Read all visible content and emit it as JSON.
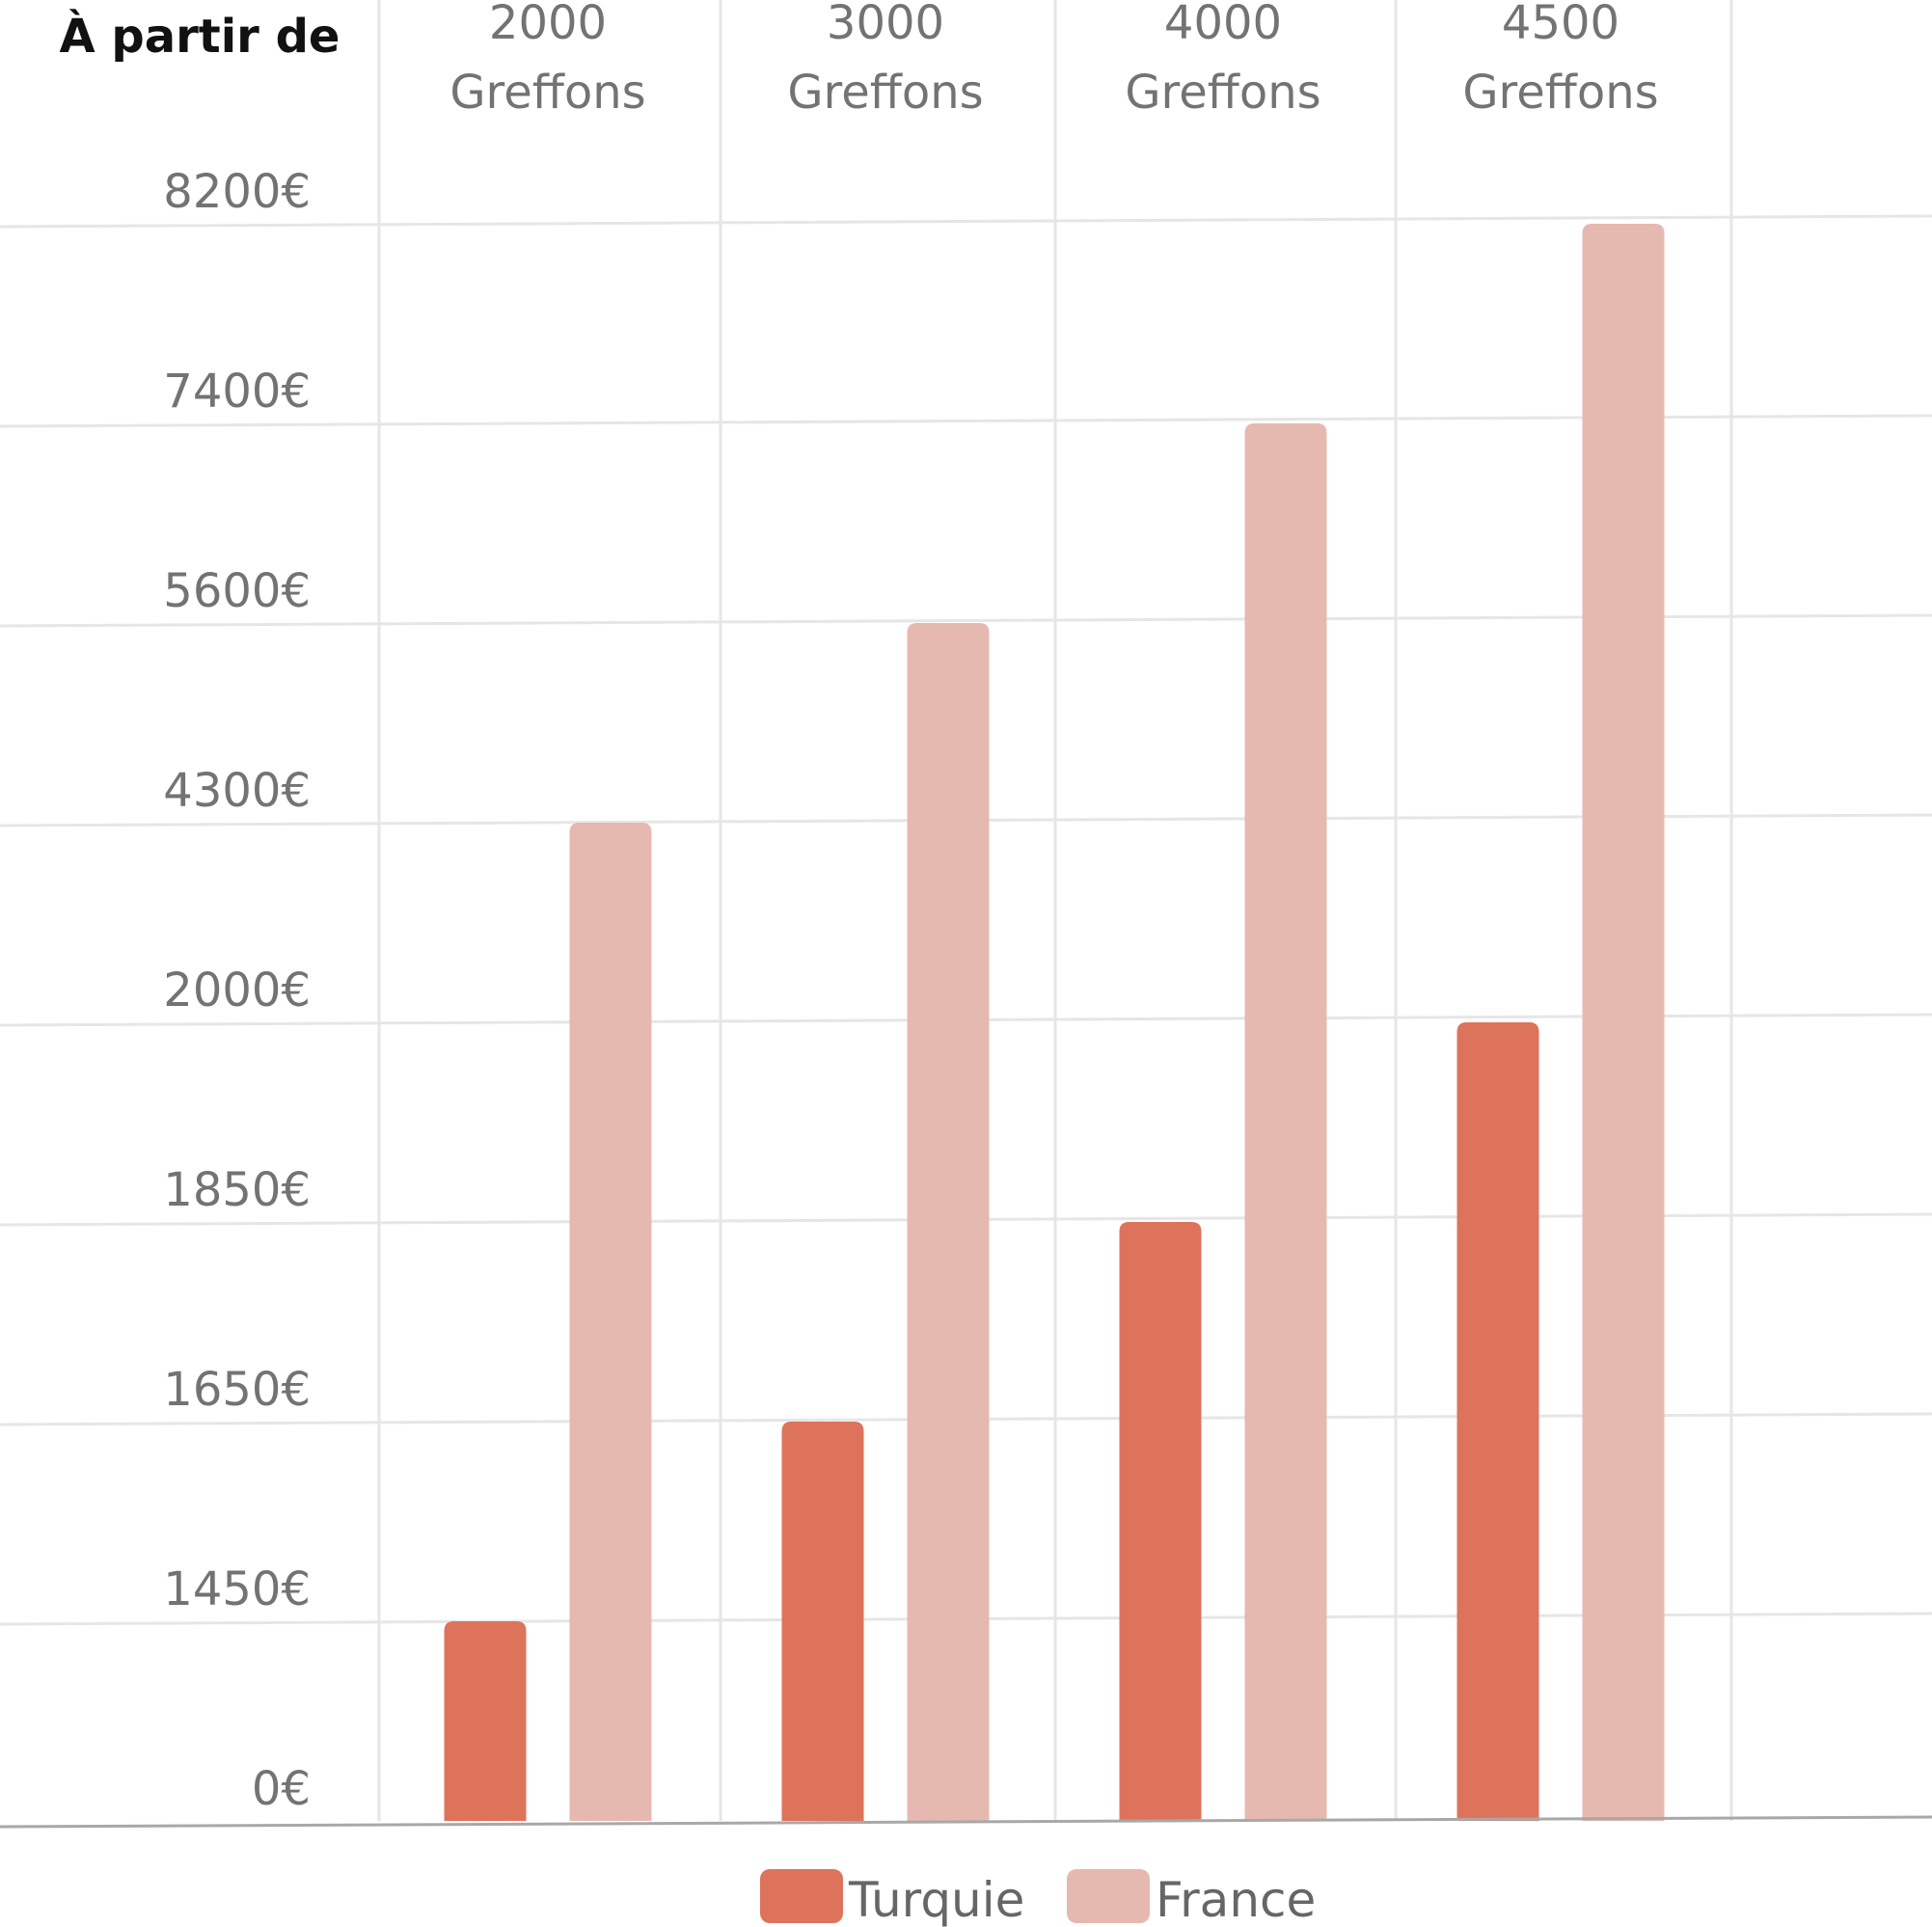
{
  "chart_data": {
    "type": "bar",
    "title": "",
    "corner_label": "À partir de",
    "categories": [
      [
        "2000",
        "Greffons"
      ],
      [
        "3000",
        "Greffons"
      ],
      [
        "4000",
        "Greffons"
      ],
      [
        "4500",
        "Greffons"
      ]
    ],
    "y_ticks": [
      "0€",
      "1450€",
      "1650€",
      "1850€",
      "2000€",
      "4300€",
      "5600€",
      "7400€",
      "8200€"
    ],
    "series": [
      {
        "name": "Turquie",
        "color": "#de735c",
        "values": [
          1450,
          1650,
          1850,
          2000
        ]
      },
      {
        "name": "France",
        "color": "#e6b9b0",
        "values": [
          4300,
          5600,
          7400,
          8200
        ]
      }
    ],
    "grid": true,
    "legend_position": "bottom-center",
    "xlabel": "",
    "ylabel": ""
  }
}
